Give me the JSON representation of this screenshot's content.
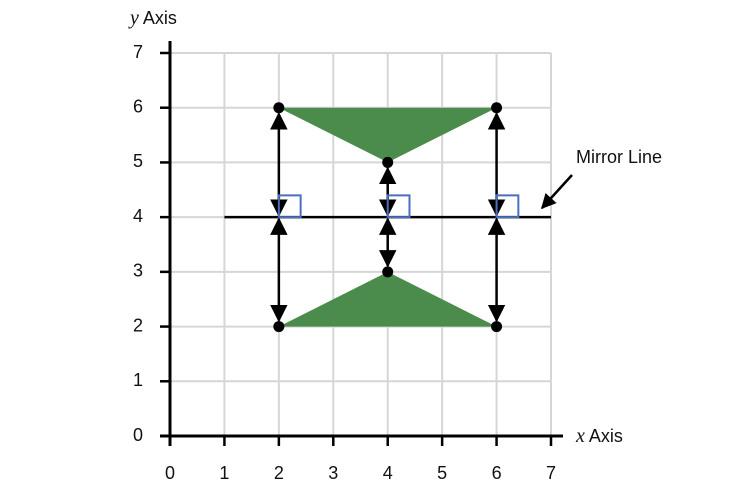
{
  "x_axis": {
    "variable": "x",
    "label": "Axis",
    "lim": [
      0,
      7
    ],
    "ticks": [
      0,
      1,
      2,
      3,
      4,
      5,
      6,
      7
    ]
  },
  "y_axis": {
    "variable": "y",
    "label": "Axis",
    "lim": [
      0,
      7
    ],
    "ticks": [
      0,
      1,
      2,
      3,
      4,
      5,
      6,
      7
    ]
  },
  "grid": true,
  "mirror_line": {
    "label": "Mirror Line",
    "y": 4,
    "x_range": [
      1,
      7
    ]
  },
  "shape_color": "#4b8b4b",
  "triangles": [
    {
      "vertices": [
        [
          2,
          6
        ],
        [
          6,
          6
        ],
        [
          4,
          5
        ]
      ]
    },
    {
      "vertices": [
        [
          2,
          2
        ],
        [
          6,
          2
        ],
        [
          4,
          3
        ]
      ]
    }
  ]
}
